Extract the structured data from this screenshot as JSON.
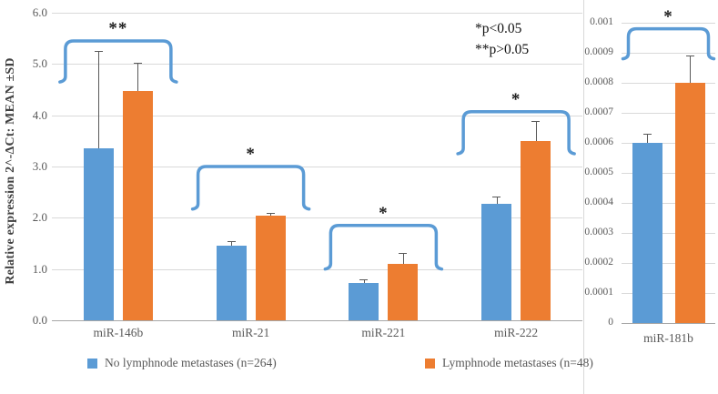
{
  "chart_data": [
    {
      "type": "bar",
      "title": "",
      "ylabel": "Relative expression 2^-ΔCt: MEAN ±SD",
      "xlabel": "",
      "ylim": [
        0,
        6
      ],
      "ytick_labels": [
        "0.0",
        "1.0",
        "2.0",
        "3.0",
        "4.0",
        "5.0",
        "6.0"
      ],
      "grid": true,
      "categories": [
        "miR-146b",
        "miR-21",
        "miR-221",
        "miR-222"
      ],
      "series": [
        {
          "name": "No lymphnode metastases (n=264)",
          "color": "#5B9BD5",
          "values": [
            3.35,
            1.45,
            0.73,
            2.28
          ],
          "errors": [
            1.9,
            0.1,
            0.06,
            0.14
          ]
        },
        {
          "name": "Lymphnode metastases (n=48)",
          "color": "#ED7D31",
          "values": [
            4.48,
            2.05,
            1.1,
            3.5
          ],
          "errors": [
            0.55,
            0.05,
            0.21,
            0.38
          ]
        }
      ],
      "significance": [
        {
          "category": "miR-146b",
          "label": "**",
          "top": 5.45,
          "bottom": 4.65
        },
        {
          "category": "miR-21",
          "label": "*",
          "top": 3.0,
          "bottom": 2.17
        },
        {
          "category": "miR-221",
          "label": "*",
          "top": 1.85,
          "bottom": 1.0
        },
        {
          "category": "miR-222",
          "label": "*",
          "top": 4.07,
          "bottom": 3.25
        }
      ]
    },
    {
      "type": "bar",
      "title": "",
      "ylabel": "",
      "xlabel": "",
      "ylim": [
        0,
        0.001
      ],
      "ytick_labels": [
        "0",
        "0.0001",
        "0.0002",
        "0.0003",
        "0.0004",
        "0.0005",
        "0.0006",
        "0.0007",
        "0.0008",
        "0.0009",
        "0.001"
      ],
      "grid": true,
      "categories": [
        "miR-181b"
      ],
      "series": [
        {
          "name": "No lymphnode metastases (n=264)",
          "color": "#5B9BD5",
          "values": [
            0.0006
          ],
          "errors": [
            3e-05
          ]
        },
        {
          "name": "Lymphnode metastases (n=48)",
          "color": "#ED7D31",
          "values": [
            0.0008
          ],
          "errors": [
            9e-05
          ]
        }
      ],
      "significance": [
        {
          "category": "miR-181b",
          "label": "*",
          "top": 0.00098,
          "bottom": 0.00088
        }
      ]
    }
  ],
  "annotation": {
    "line1": "*p<0.05",
    "line2": "**p>0.05"
  },
  "legend": {
    "items": [
      {
        "label": "No lymphnode metastases (n=264)",
        "color": "#5B9BD5"
      },
      {
        "label": "Lymphnode metastases (n=48)",
        "color": "#ED7D31"
      }
    ]
  },
  "colors": {
    "blue": "#5B9BD5",
    "orange": "#ED7D31",
    "gridline": "#D9D9D9",
    "axis_line": "#A6A6A6",
    "tick_text": "#595959",
    "bracket": "#5B9BD5",
    "error_bar": "#595959",
    "star": "#1a1a1a",
    "background": "#FFFFFF"
  }
}
